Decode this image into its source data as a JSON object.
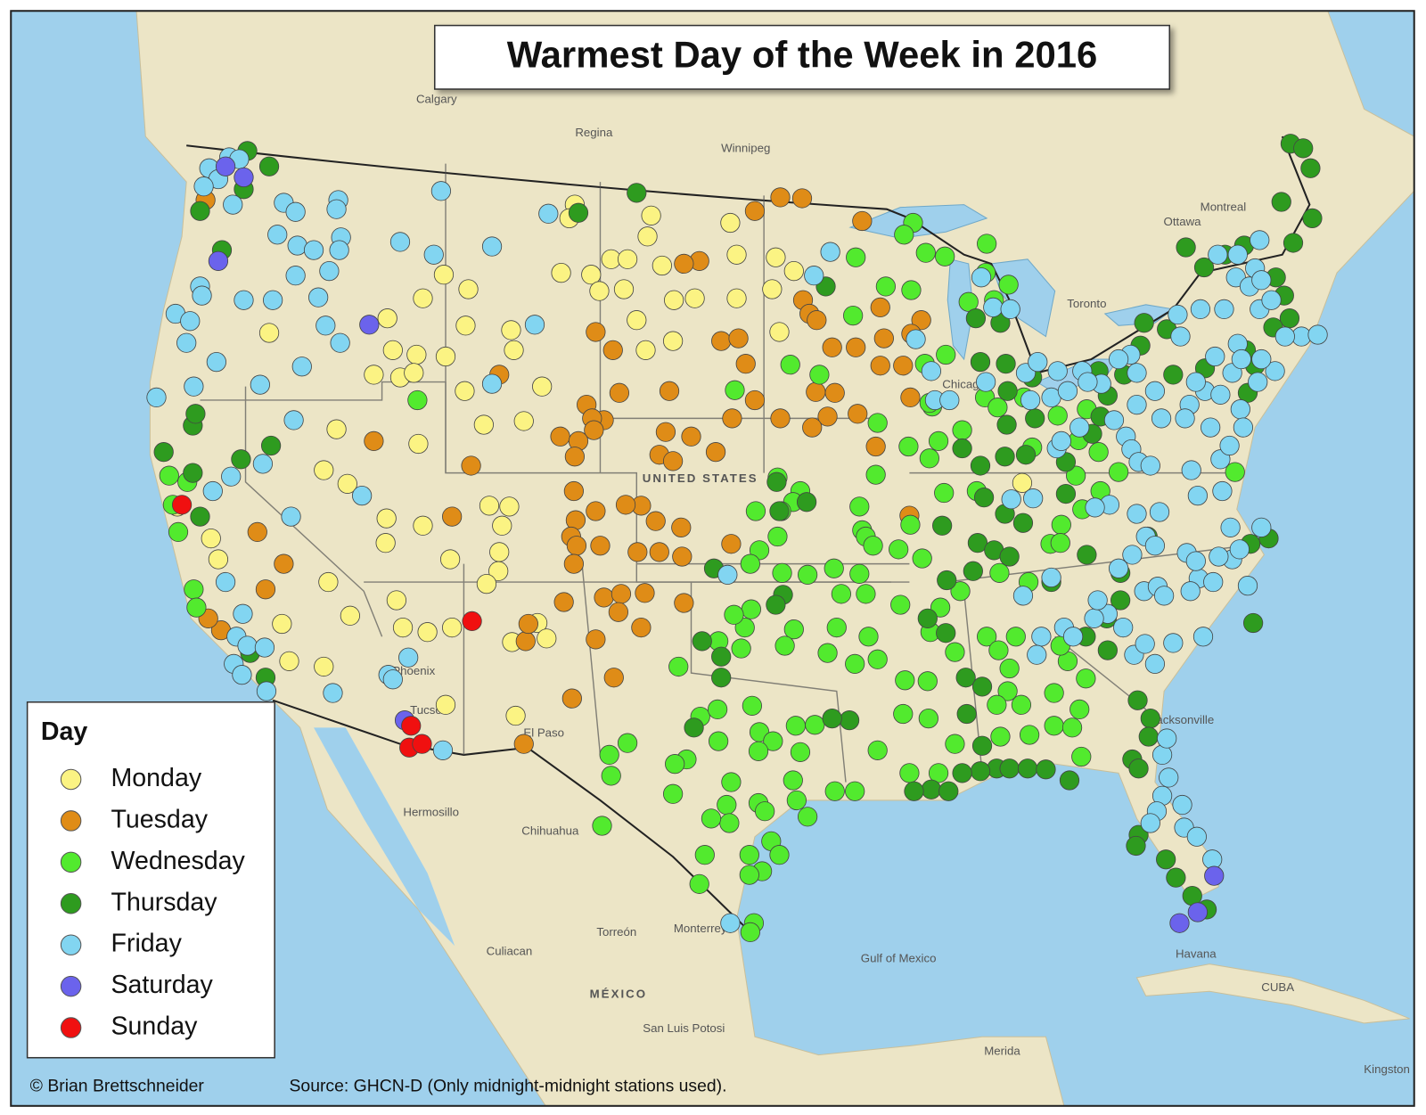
{
  "title": "Warmest Day of the Week in 2016",
  "legend": {
    "title": "Day",
    "items": [
      {
        "name": "Monday",
        "color": "#fbf383"
      },
      {
        "name": "Tuesday",
        "color": "#df8c17"
      },
      {
        "name": "Wednesday",
        "color": "#52ea2e"
      },
      {
        "name": "Thursday",
        "color": "#2e9b1f"
      },
      {
        "name": "Friday",
        "color": "#82d5f1"
      },
      {
        "name": "Saturday",
        "color": "#6b63ec"
      },
      {
        "name": "Sunday",
        "color": "#f01010"
      }
    ]
  },
  "credit": "© Brian Brettschneider",
  "source": "Source: GHCN-D (Only midnight-midnight stations used).",
  "place_labels": [
    "Calgary",
    "Regina",
    "Winnipeg",
    "Ottawa",
    "Montreal",
    "Toronto",
    "Chicago",
    "Hermosillo",
    "Chihuahua",
    "Culiacan",
    "Torreón",
    "Monterrey",
    "MÉXICO",
    "San Luis Potosi",
    "Havana",
    "CUBA",
    "Gulf of Mexico",
    "Merida",
    "Kingston",
    "El Paso",
    "Tucson",
    "Phoenix",
    "Jacksonville",
    "UNITED STATES"
  ]
}
